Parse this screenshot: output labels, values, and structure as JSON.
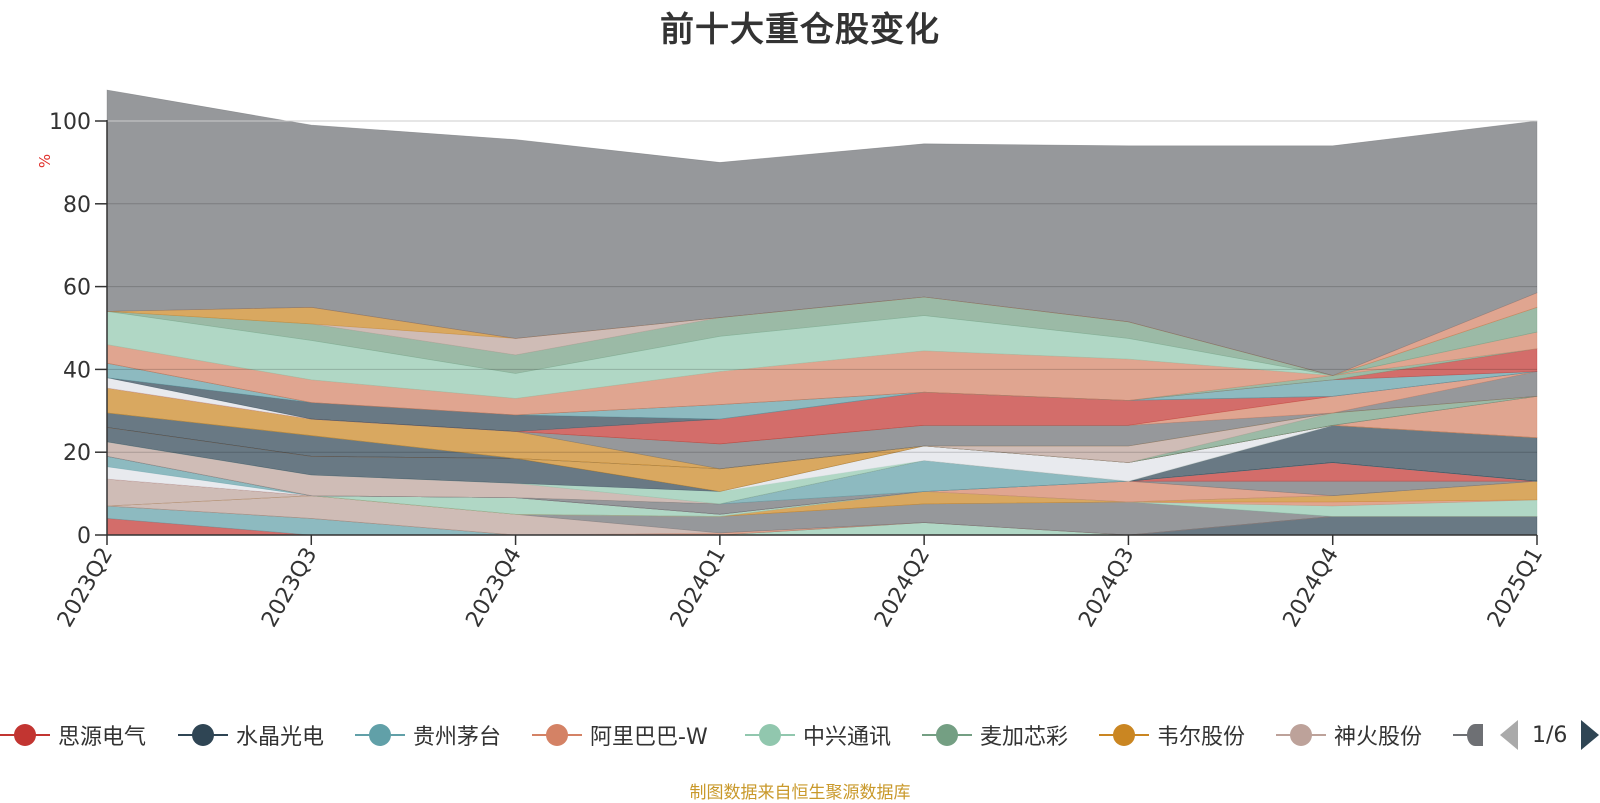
{
  "title": "前十大重仓股变化",
  "footnote": "制图数据来自恒生聚源数据库",
  "legend_page": "1/6",
  "legend": [
    {
      "name": "思源电气",
      "color": "#c23531"
    },
    {
      "name": "水晶光电",
      "color": "#2f4554"
    },
    {
      "name": "贵州茅台",
      "color": "#61a0a8"
    },
    {
      "name": "阿里巴巴-W",
      "color": "#d48265"
    },
    {
      "name": "中兴通讯",
      "color": "#91c7ae"
    },
    {
      "name": "麦加芯彩",
      "color": "#749f83"
    },
    {
      "name": "韦尔股份",
      "color": "#ca8622"
    },
    {
      "name": "神火股份",
      "color": "#bda29a"
    },
    {
      "name": "",
      "color": "#6e7074"
    }
  ],
  "chart_data": {
    "type": "area",
    "stacked": true,
    "title": "前十大重仓股变化",
    "ylabel": "%",
    "ylim": [
      0,
      100
    ],
    "yticks": [
      0,
      20,
      40,
      60,
      80,
      100
    ],
    "categories": [
      "2023Q2",
      "2023Q3",
      "2023Q4",
      "2024Q1",
      "2024Q2",
      "2024Q3",
      "2024Q4",
      "2025Q1"
    ],
    "grid": true,
    "series": [
      {
        "color": "#c23531",
        "values": [
          4,
          0,
          0,
          0,
          0,
          0,
          0,
          0
        ]
      },
      {
        "color": "#61a0a8",
        "values": [
          3,
          4,
          0,
          0,
          0,
          0,
          0,
          0
        ]
      },
      {
        "color": "#91c7ae",
        "values": [
          0,
          0,
          0,
          0,
          3,
          0,
          0,
          0
        ]
      },
      {
        "color": "#2f4554",
        "values": [
          0,
          0,
          0,
          0,
          0,
          0,
          4.5,
          4.5
        ]
      },
      {
        "color": "#d48265",
        "values": [
          0,
          0,
          0,
          0.5,
          0,
          0,
          0,
          0
        ]
      },
      {
        "color": "#bda29a",
        "values": [
          0,
          5.5,
          5,
          0,
          0,
          0,
          0,
          0
        ]
      },
      {
        "color": "#6e7074",
        "values": [
          0,
          0,
          0,
          4,
          4.5,
          8,
          0,
          0
        ]
      },
      {
        "color": "#91c7ae",
        "values": [
          0,
          0,
          0,
          0,
          0,
          0,
          2.5,
          4
        ]
      },
      {
        "color": "#d48265",
        "values": [
          0,
          0,
          0,
          0,
          0,
          0,
          1,
          0
        ]
      },
      {
        "color": "#ca8622",
        "values": [
          0,
          0,
          0,
          0,
          3,
          0,
          1.5,
          4.5
        ]
      },
      {
        "color": "#bda29a",
        "values": [
          6.5,
          0,
          0,
          0,
          0,
          0,
          0,
          0
        ]
      },
      {
        "color": "#91c7ae",
        "values": [
          0,
          0,
          4,
          0.5,
          0,
          0,
          0,
          0
        ]
      },
      {
        "color": "#d48265",
        "values": [
          0,
          0,
          0,
          0,
          0,
          5,
          0,
          0
        ]
      },
      {
        "color": "#6e7074",
        "values": [
          0,
          0,
          0,
          0,
          0,
          0,
          3.5,
          0
        ]
      },
      {
        "color": "#c23531",
        "values": [
          0,
          0,
          0,
          0,
          0,
          0,
          4.5,
          0
        ]
      },
      {
        "color": "#dfe2e8",
        "values": [
          3,
          0,
          0,
          0,
          0,
          0,
          0,
          0
        ]
      },
      {
        "color": "#61a0a8",
        "values": [
          2.5,
          0,
          0,
          0,
          0,
          0,
          0,
          0
        ]
      },
      {
        "color": "#6e7074",
        "values": [
          0,
          0,
          0,
          2.5,
          0,
          0,
          0,
          0
        ]
      },
      {
        "color": "#61a0a8",
        "values": [
          0,
          0,
          0,
          0,
          7.5,
          0,
          0,
          0
        ]
      },
      {
        "color": "#2f4554",
        "values": [
          0,
          0,
          0,
          0,
          0,
          0,
          9,
          10.5
        ]
      },
      {
        "color": "#bda29a",
        "values": [
          3.5,
          5,
          3.5,
          0,
          0,
          0,
          0,
          0
        ]
      },
      {
        "color": "#91c7ae",
        "values": [
          0,
          0,
          0,
          3,
          0,
          0,
          0,
          0
        ]
      },
      {
        "color": "#dfe2e8",
        "values": [
          0,
          0,
          0,
          0,
          3.5,
          4.5,
          0,
          0
        ]
      },
      {
        "color": "#2f4554",
        "values": [
          3.5,
          4.5,
          6,
          0,
          0,
          0,
          0,
          0
        ]
      },
      {
        "color": "#ca8622",
        "values": [
          0,
          0,
          0,
          5.5,
          0,
          0,
          0,
          0
        ]
      },
      {
        "color": "#d48265",
        "values": [
          0,
          0,
          0,
          0,
          0,
          0,
          0,
          10
        ]
      },
      {
        "color": "#2f4554",
        "values": [
          3.5,
          5,
          0,
          0,
          0,
          0,
          0,
          0
        ]
      },
      {
        "color": "#749f83",
        "values": [
          0,
          0,
          0,
          0,
          0,
          0,
          3,
          0
        ]
      },
      {
        "color": "#bda29a",
        "values": [
          0,
          0,
          0,
          0,
          0,
          4,
          0,
          0
        ]
      },
      {
        "color": "#ca8622",
        "values": [
          6,
          4,
          6.5,
          0,
          0,
          0,
          0,
          0
        ]
      },
      {
        "color": "#6e7074",
        "values": [
          0,
          0,
          0,
          6,
          5,
          5,
          0,
          6
        ]
      },
      {
        "color": "#d48265",
        "values": [
          0,
          0,
          0,
          0,
          0,
          0,
          4,
          0
        ]
      },
      {
        "color": "#c23531",
        "values": [
          0,
          0,
          0,
          6,
          8,
          6,
          0,
          0
        ]
      },
      {
        "color": "#dfe2e8",
        "values": [
          2.5,
          0,
          0,
          0,
          0,
          0,
          0,
          0
        ]
      },
      {
        "color": "#2f4554",
        "values": [
          0,
          4,
          4,
          0,
          0,
          0,
          0,
          0
        ]
      },
      {
        "color": "#61a0a8",
        "values": [
          3.5,
          0,
          0,
          3.5,
          0,
          0,
          4,
          0
        ]
      },
      {
        "color": "#c23531",
        "values": [
          0,
          0,
          0,
          0,
          0,
          0,
          0,
          5.5
        ]
      },
      {
        "color": "#749f83",
        "values": [
          0,
          0,
          0,
          0,
          0,
          0,
          1,
          0
        ]
      },
      {
        "color": "#d48265",
        "values": [
          4.5,
          5.5,
          4,
          8,
          10,
          10,
          0,
          4
        ]
      },
      {
        "color": "#91c7ae",
        "values": [
          8,
          9.5,
          6,
          8.5,
          8.5,
          5,
          0,
          0
        ]
      },
      {
        "color": "#749f83",
        "values": [
          0,
          4,
          4.5,
          4.5,
          4.5,
          4,
          0,
          6
        ]
      },
      {
        "color": "#bda29a",
        "values": [
          0,
          0,
          4,
          0,
          0,
          0,
          0,
          0
        ]
      },
      {
        "color": "#ca8622",
        "values": [
          0,
          4,
          0,
          0,
          0,
          0,
          0,
          0
        ]
      },
      {
        "color": "#d48265",
        "values": [
          0,
          0,
          0,
          0,
          0,
          0,
          0,
          3.5
        ]
      },
      {
        "color": "#6e7074",
        "values": [
          53.5,
          44,
          48,
          37.5,
          37,
          42.5,
          55.5,
          41.5
        ]
      }
    ]
  }
}
